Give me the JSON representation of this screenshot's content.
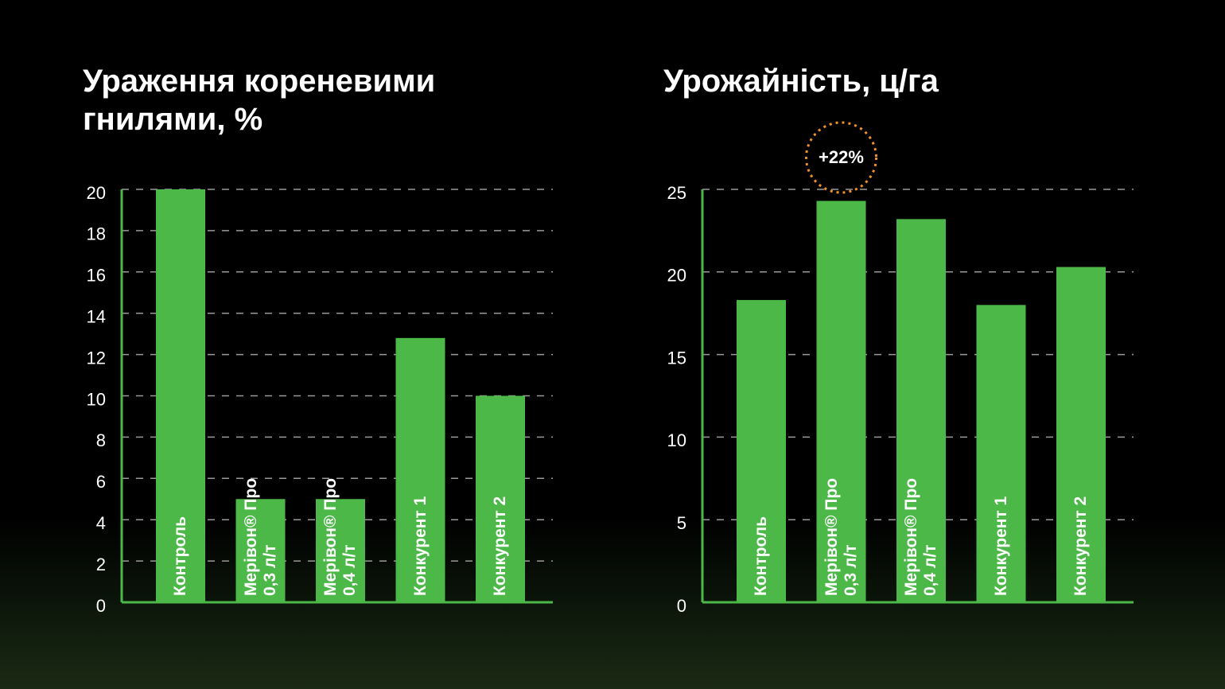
{
  "chart_data": [
    {
      "type": "bar",
      "title": "Ураження кореневими гнилями, %",
      "categories": [
        "Контроль",
        "Мерівон® Про 0,3 л/т",
        "Мерівон® Про 0,4 л/т",
        "Конкурент 1",
        "Конкурент 2"
      ],
      "values": [
        20,
        5,
        5,
        12.8,
        10
      ],
      "color": "#4cb848",
      "ylim": [
        0,
        20
      ],
      "yticks": [
        0,
        2,
        4,
        6,
        8,
        10,
        12,
        14,
        16,
        18,
        20
      ],
      "grid": true
    },
    {
      "type": "bar",
      "title": "Урожайність, ц/га",
      "categories": [
        "Контроль",
        "Мерівон® Про 0,3 л/т",
        "Мерівон® Про 0,4 л/т",
        "Конкурент 1",
        "Конкурент 2"
      ],
      "values": [
        18.3,
        24.3,
        23.2,
        18.0,
        20.3
      ],
      "color": "#4cb848",
      "ylim": [
        0,
        25
      ],
      "yticks": [
        0,
        5,
        10,
        15,
        20,
        25
      ],
      "grid": true,
      "annotation": "+22%"
    }
  ]
}
